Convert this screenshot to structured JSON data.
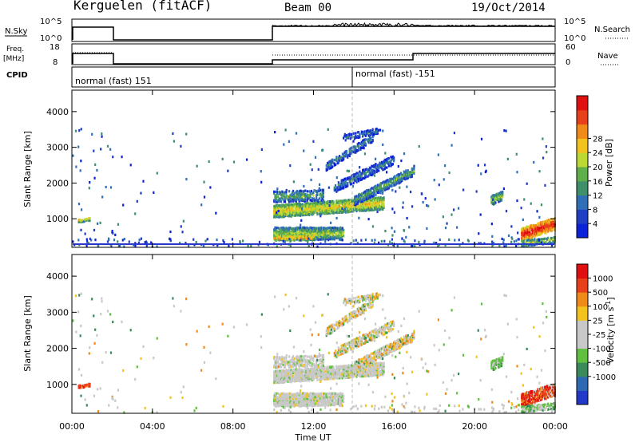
{
  "header": {
    "station": "Kerguelen (fitACF)",
    "beam": "Beam 00",
    "date": "19/Oct/2014"
  },
  "top_panels": {
    "nsky_label": "N.Sky",
    "nsky_ticks": [
      "10^5",
      "10^0"
    ],
    "nsearch_label": "N.Search",
    "nsearch_ticks": [
      "10^5",
      "10^0"
    ],
    "freq_label": "Freq.",
    "freq_unit": "[MHz]",
    "freq_ticks": [
      "18",
      "8"
    ],
    "nave_label": "Nave",
    "nave_ticks": [
      "60",
      "0"
    ],
    "cpid_label": "CPID",
    "cpid_segments": [
      {
        "label": "normal (fast) 151",
        "start_hour": 0
      },
      {
        "label": "normal (fast) -151",
        "start_hour": 14
      }
    ]
  },
  "chart_data": [
    {
      "type": "heatmap",
      "panel": "power",
      "ylabel": "Slant Range [km]",
      "xlabel": "",
      "ylim": [
        200,
        4600
      ],
      "yticks": [
        "1000",
        "2000",
        "3000",
        "4000"
      ],
      "xticks": [
        "00:00",
        "04:00",
        "08:00",
        "12:00",
        "16:00",
        "20:00",
        "00:00"
      ],
      "colorbar": {
        "label": "Power [dB]",
        "ticks": [
          "4",
          "8",
          "12",
          "16",
          "20",
          "24",
          "28"
        ],
        "colors": [
          "#0a22d8",
          "#1f3ec4",
          "#2f6fb8",
          "#3f8f6a",
          "#5fb04a",
          "#bcd832",
          "#f2c21e",
          "#f08a18",
          "#e8401a",
          "#e01010"
        ]
      },
      "features": [
        {
          "name": "main-band",
          "time_start": 10,
          "time_end": 15.5,
          "range_center_start": 1250,
          "range_center_end": 1500
        },
        {
          "name": "rising-arc",
          "time_start": 14,
          "time_end": 17,
          "range_center_start": 1600,
          "range_center_end": 2400
        },
        {
          "name": "upper-echo",
          "time_start": 12.5,
          "time_end": 15,
          "range_center_start": 2400,
          "range_center_end": 3300
        },
        {
          "name": "late-echo",
          "time_start": 20.8,
          "time_end": 21.4,
          "range_center_start": 1550,
          "range_center_end": 1700
        },
        {
          "name": "night-echo",
          "time_start": 22.3,
          "time_end": 24,
          "range_center_start": 500,
          "range_center_end": 900
        },
        {
          "name": "early-echo",
          "time_start": 0.3,
          "time_end": 0.9,
          "range_center_start": 950,
          "range_center_end": 1050
        }
      ]
    },
    {
      "type": "heatmap",
      "panel": "velocity",
      "ylabel": "Slant Range [km]",
      "xlabel": "Time UT",
      "ylim": [
        200,
        4600
      ],
      "yticks": [
        "1000",
        "2000",
        "3000",
        "4000"
      ],
      "xticks": [
        "00:00",
        "04:00",
        "08:00",
        "12:00",
        "16:00",
        "20:00",
        "00:00"
      ],
      "colorbar": {
        "label": "Velocity [m s",
        "label_sup": "-1",
        "label_end": "]",
        "ticks": [
          "1000",
          "500",
          "100",
          "25",
          "-25",
          "-100",
          "-500",
          "-1000"
        ],
        "colors": [
          "#2238c8",
          "#2e6ab4",
          "#3a8a5a",
          "#5fc040",
          "#c8c8c8",
          "#c8c8c8",
          "#f2c21e",
          "#f08a18",
          "#e8401a",
          "#e01010"
        ]
      }
    }
  ]
}
